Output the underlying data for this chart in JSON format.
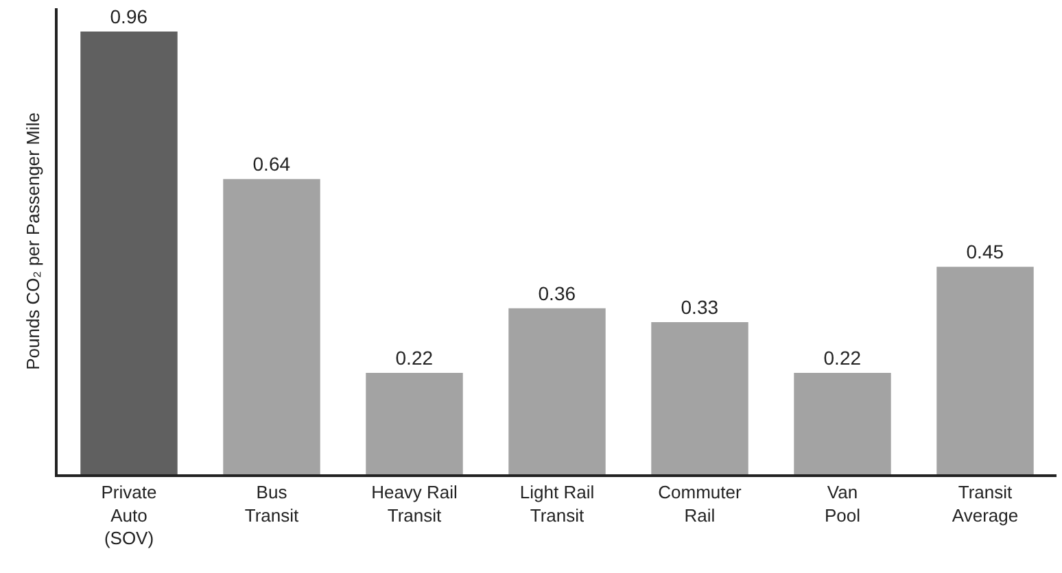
{
  "chart_data": {
    "type": "bar",
    "ylabel": "Pounds CO₂ per Passenger Mile",
    "categories": [
      "Private\nAuto\n(SOV)",
      "Bus\nTransit",
      "Heavy Rail\nTransit",
      "Light Rail\nTransit",
      "Commuter\nRail",
      "Van\nPool",
      "Transit\nAverage"
    ],
    "values": [
      0.96,
      0.64,
      0.22,
      0.36,
      0.33,
      0.22,
      0.45
    ],
    "colors": [
      "#606060",
      "#a3a3a3",
      "#a3a3a3",
      "#a3a3a3",
      "#a3a3a3",
      "#a3a3a3",
      "#a3a3a3"
    ],
    "data_labels": true,
    "grid": false,
    "legend": false
  }
}
